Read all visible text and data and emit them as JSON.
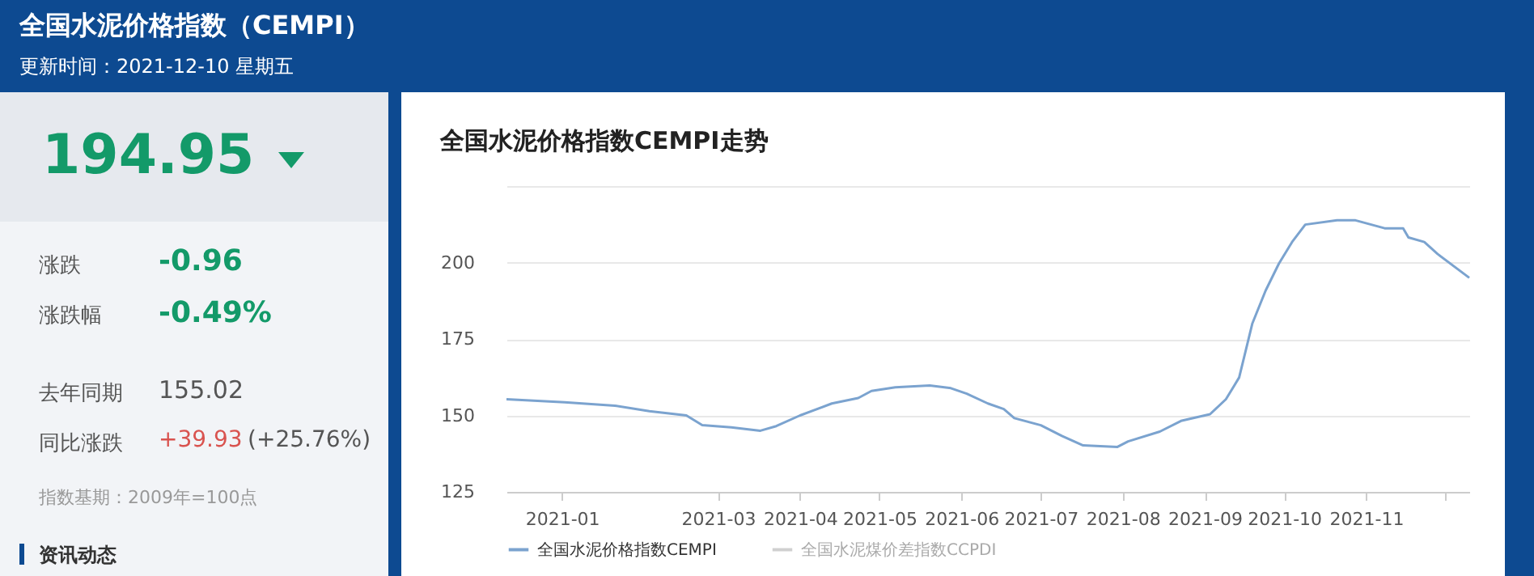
{
  "chart_data": {
    "type": "line",
    "title": "全国水泥价格指数CEMPI走势",
    "annotations": [
      "全国水泥价格指数（CEMPI）",
      "更新时间：2021-12-10 星期五",
      "194.95",
      "涨跌",
      "-0.96",
      "涨跌幅",
      "-0.49%",
      "去年同期",
      "155.02",
      "同比涨跌",
      "+39.93",
      "(+25.76%)",
      "指数基期：2009年=100点",
      "资讯动态"
    ],
    "x": [
      "2020-12-11",
      "2021-01-02",
      "2021-01-21",
      "2021-02-03",
      "2021-02-17",
      "2021-02-23",
      "2021-03-06",
      "2021-03-17",
      "2021-03-23",
      "2021-04-01",
      "2021-04-13",
      "2021-04-23",
      "2021-04-28",
      "2021-05-07",
      "2021-05-20",
      "2021-05-28",
      "2021-06-03",
      "2021-06-11",
      "2021-06-17",
      "2021-06-21",
      "2021-07-01",
      "2021-07-09",
      "2021-07-17",
      "2021-07-30",
      "2021-08-03",
      "2021-08-15",
      "2021-08-23",
      "2021-09-03",
      "2021-09-09",
      "2021-09-14",
      "2021-09-19",
      "2021-09-24",
      "2021-09-29",
      "2021-10-04",
      "2021-10-09",
      "2021-10-21",
      "2021-10-28",
      "2021-11-08",
      "2021-11-15",
      "2021-11-17",
      "2021-11-23",
      "2021-11-28",
      "2021-12-10"
    ],
    "series": [
      {
        "name": "全国水泥价格指数CEMPI",
        "color": "#7ba3cf",
        "values": [
          155.3,
          154.3,
          153.2,
          151.4,
          150.0,
          146.8,
          146.1,
          145.0,
          146.5,
          150.0,
          153.9,
          155.7,
          158.0,
          159.2,
          159.8,
          158.9,
          157.1,
          153.9,
          152.1,
          149.1,
          146.8,
          143.3,
          140.2,
          139.7,
          141.5,
          144.7,
          148.2,
          150.4,
          155.3,
          162.4,
          180.1,
          190.8,
          199.6,
          206.7,
          212.4,
          213.8,
          213.8,
          211.2,
          211.2,
          208.2,
          206.7,
          202.8,
          195.0
        ]
      },
      {
        "name": "全国水泥煤价差指数CCPDI",
        "color": "#d0d0d0",
        "values": [
          null,
          null,
          null,
          null,
          null,
          null,
          null,
          null,
          null,
          null,
          null,
          null,
          null,
          null,
          null,
          null,
          null,
          null,
          null,
          null,
          null,
          null,
          null,
          null,
          null,
          null,
          null,
          null,
          null,
          null,
          null,
          null,
          null,
          null,
          null,
          null,
          null,
          null,
          null,
          null,
          null,
          null,
          null
        ]
      }
    ],
    "xlim": [
      "2020-12-11",
      "2021-12-10"
    ],
    "xticks": [
      "2021-01",
      "2021-03",
      "2021-04",
      "2021-05",
      "2021-06",
      "2021-07",
      "2021-08",
      "2021-09",
      "2021-10",
      "2021-11",
      {
        "value": "2021-12",
        "label": null
      }
    ],
    "ylim": [
      125,
      225
    ],
    "yticks": [
      125,
      150,
      175,
      200,
      {
        "value": 225,
        "label": null
      }
    ],
    "grid": "y",
    "legend": "bottom",
    "marker": "none",
    "line_style": "solid"
  }
}
